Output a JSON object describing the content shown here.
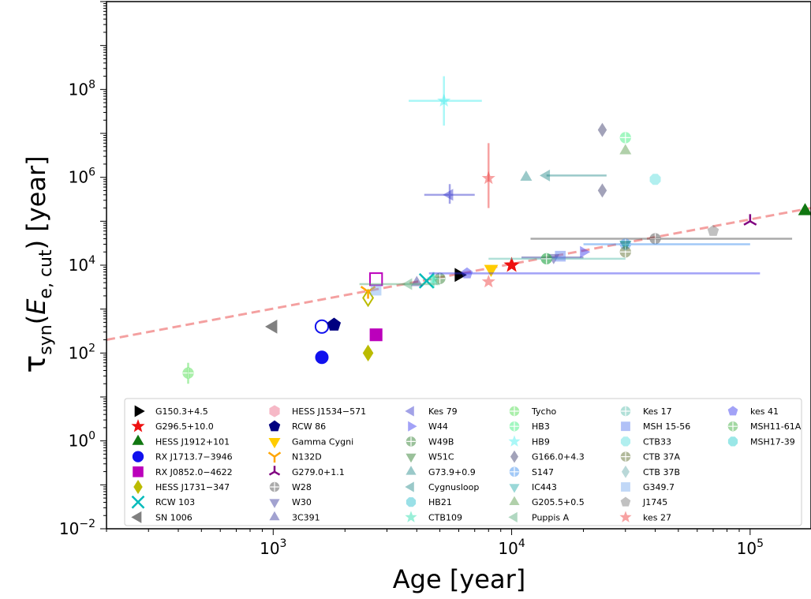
{
  "chart_data": {
    "type": "scatter",
    "title": "",
    "xlabel": "Age [year]",
    "ylabel": "τsyn(Ee,cut) [year]",
    "ylabel_parts": {
      "tau": "τ",
      "sub": "syn",
      "open": "(",
      "E": "E",
      "esub": "e, cut",
      "close": ")",
      "unit": " [year]"
    },
    "xscale": "log",
    "yscale": "log",
    "xlim": [
      200,
      180000
    ],
    "ylim": [
      0.01,
      10000000000
    ],
    "x_ticks": [
      {
        "value": 1000,
        "base": "10",
        "exp": "3"
      },
      {
        "value": 10000,
        "base": "10",
        "exp": "4"
      },
      {
        "value": 100000,
        "base": "10",
        "exp": "5"
      }
    ],
    "y_ticks": [
      {
        "value": 0.01,
        "base": "10",
        "exp": "−2"
      },
      {
        "value": 1,
        "base": "10",
        "exp": "0"
      },
      {
        "value": 100,
        "base": "10",
        "exp": "2"
      },
      {
        "value": 10000,
        "base": "10",
        "exp": "4"
      },
      {
        "value": 1000000,
        "base": "10",
        "exp": "6"
      },
      {
        "value": 100000000,
        "base": "10",
        "exp": "8"
      }
    ],
    "grid": false,
    "legend_position": "lower-left",
    "fit_line": {
      "style": "dashed",
      "color": "#f4a0a0",
      "points": [
        [
          200,
          200
        ],
        [
          180000,
          200000
        ]
      ]
    },
    "series": [
      {
        "name": "G150.3+4.5",
        "marker": "tri-right",
        "color": "#000000",
        "fill": true,
        "alpha": 1,
        "points": [
          {
            "x": 6000,
            "y": 6000
          }
        ]
      },
      {
        "name": "G296.5+10.0",
        "marker": "star",
        "color": "#ee1111",
        "fill": true,
        "alpha": 1,
        "points": [
          {
            "x": 10000,
            "y": 10000
          }
        ]
      },
      {
        "name": "HESS J1912+101",
        "marker": "tri-up",
        "color": "#117711",
        "fill": true,
        "alpha": 1,
        "points": [
          {
            "x": 170000,
            "y": 170000
          }
        ]
      },
      {
        "name": "RX J1713.7−3946",
        "marker": "circle",
        "color": "#1111ee",
        "fill": true,
        "alpha": 1,
        "points": [
          {
            "x": 1600,
            "y": 80
          },
          {
            "x": 1600,
            "y": 400,
            "open": true
          }
        ]
      },
      {
        "name": "RX J0852.0−4622",
        "marker": "square",
        "color": "#bb00bb",
        "fill": true,
        "alpha": 1,
        "points": [
          {
            "x": 2700,
            "y": 260
          },
          {
            "x": 2700,
            "y": 4800,
            "open": true
          }
        ]
      },
      {
        "name": "HESS J1731−347",
        "marker": "diamond",
        "color": "#bbbb00",
        "fill": true,
        "alpha": 1,
        "points": [
          {
            "x": 2500,
            "y": 100
          },
          {
            "x": 2500,
            "y": 1800,
            "open": true
          }
        ]
      },
      {
        "name": "RCW 103",
        "marker": "x",
        "color": "#00bbbb",
        "fill": false,
        "alpha": 1,
        "points": [
          {
            "x": 4400,
            "y": 4400
          }
        ]
      },
      {
        "name": "SN 1006",
        "marker": "tri-left",
        "color": "#808080",
        "fill": true,
        "alpha": 1,
        "points": [
          {
            "x": 1000,
            "y": 400
          }
        ]
      },
      {
        "name": "HESS J1534−571",
        "marker": "hexagon",
        "color": "#f6b8c6",
        "fill": true,
        "alpha": 1,
        "points": []
      },
      {
        "name": "RCW 86",
        "marker": "pentagon",
        "color": "#000080",
        "fill": true,
        "alpha": 1,
        "points": [
          {
            "x": 1800,
            "y": 440
          }
        ]
      },
      {
        "name": "Gamma Cygni",
        "marker": "tri-down",
        "color": "#ffcc00",
        "fill": true,
        "alpha": 1,
        "points": [
          {
            "x": 8200,
            "y": 8200
          }
        ]
      },
      {
        "name": "N132D",
        "marker": "tri-down-thin",
        "color": "#ffa500",
        "fill": false,
        "alpha": 1,
        "points": [
          {
            "x": 2500,
            "y": 2500
          }
        ]
      },
      {
        "name": "G279.0+1.1",
        "marker": "tri-y",
        "color": "#800080",
        "fill": false,
        "alpha": 1,
        "points": [
          {
            "x": 100000,
            "y": 100000
          }
        ]
      },
      {
        "name": "W28",
        "marker": "circle-plus",
        "color": "#444444",
        "fill": true,
        "alpha": 0.45,
        "points": [
          {
            "x": 40000,
            "y": 40000,
            "xerr": [
              12000,
              150000
            ]
          }
        ]
      },
      {
        "name": "W30",
        "marker": "tri-down",
        "color": "#333399",
        "fill": true,
        "alpha": 0.45,
        "points": [
          {
            "x": 15000,
            "y": 15000,
            "xerr": [
              11000,
              20000
            ]
          }
        ]
      },
      {
        "name": "3C391",
        "marker": "tri-up",
        "color": "#333399",
        "fill": true,
        "alpha": 0.45,
        "points": [
          {
            "x": 4000,
            "y": 4000
          }
        ]
      },
      {
        "name": "Kes 79",
        "marker": "tri-left",
        "color": "#3333cc",
        "fill": true,
        "alpha": 0.45,
        "points": [
          {
            "x": 5500,
            "y": 400000,
            "xerr": [
              4300,
              7000
            ],
            "yerr": [
              250000,
              700000
            ]
          }
        ]
      },
      {
        "name": "W44",
        "marker": "tri-right",
        "color": "#3333ee",
        "fill": true,
        "alpha": 0.45,
        "points": [
          {
            "x": 20000,
            "y": 20000
          }
        ]
      },
      {
        "name": "W49B",
        "marker": "circle-plus",
        "color": "#227722",
        "fill": true,
        "alpha": 0.45,
        "points": [
          {
            "x": 5000,
            "y": 5000
          }
        ]
      },
      {
        "name": "W51C",
        "marker": "tri-down",
        "color": "#227722",
        "fill": true,
        "alpha": 0.45,
        "points": [
          {
            "x": 30000,
            "y": 30000
          }
        ]
      },
      {
        "name": "G73.9+0.9",
        "marker": "tri-up",
        "color": "#228888",
        "fill": true,
        "alpha": 0.45,
        "points": [
          {
            "x": 11500,
            "y": 1000000
          }
        ]
      },
      {
        "name": "Cygnusloop",
        "marker": "tri-left",
        "color": "#228888",
        "fill": true,
        "alpha": 0.45,
        "points": [
          {
            "x": 14000,
            "y": 1100000,
            "xerr": [
              14000,
              25000
            ]
          }
        ]
      },
      {
        "name": "HB21",
        "marker": "octagon",
        "color": "#22bbcc",
        "fill": true,
        "alpha": 0.45,
        "points": []
      },
      {
        "name": "CTB109",
        "marker": "star",
        "color": "#22ddaa",
        "fill": true,
        "alpha": 0.45,
        "points": [
          {
            "x": 4700,
            "y": 4700,
            "yerr": [
              3000,
              7000
            ]
          }
        ]
      },
      {
        "name": "Tycho",
        "marker": "circle-plus",
        "color": "#44dd44",
        "fill": true,
        "alpha": 0.45,
        "points": [
          {
            "x": 440,
            "y": 35,
            "yerr": [
              20,
              60
            ]
          }
        ]
      },
      {
        "name": "HB3",
        "marker": "circle-plus",
        "color": "#33ee77",
        "fill": true,
        "alpha": 0.45,
        "points": [
          {
            "x": 30000,
            "y": 8000000
          }
        ]
      },
      {
        "name": "HB9",
        "marker": "star",
        "color": "#44eeee",
        "fill": true,
        "alpha": 0.45,
        "points": [
          {
            "x": 5200,
            "y": 55000000,
            "xerr": [
              3700,
              7500
            ],
            "yerr": [
              15000000,
              200000000
            ]
          }
        ]
      },
      {
        "name": "G166.0+4.3",
        "marker": "diamond",
        "color": "#333366",
        "fill": true,
        "alpha": 0.45,
        "points": [
          {
            "x": 24000,
            "y": 12000000
          },
          {
            "x": 24000,
            "y": 500000
          }
        ]
      },
      {
        "name": "S147",
        "marker": "circle-plus",
        "color": "#3388ee",
        "fill": true,
        "alpha": 0.45,
        "points": [
          {
            "x": 30000,
            "y": 30000,
            "xerr": [
              20000,
              100000
            ]
          }
        ]
      },
      {
        "name": "IC443",
        "marker": "tri-down",
        "color": "#22aaaa",
        "fill": true,
        "alpha": 0.45,
        "points": [
          {
            "x": 30000,
            "y": 30000
          }
        ]
      },
      {
        "name": "G205.5+0.5",
        "marker": "tri-up",
        "color": "#559944",
        "fill": true,
        "alpha": 0.45,
        "points": [
          {
            "x": 30000,
            "y": 4000000
          }
        ]
      },
      {
        "name": "Puppis A",
        "marker": "tri-left",
        "color": "#55aa77",
        "fill": true,
        "alpha": 0.45,
        "points": [
          {
            "x": 3700,
            "y": 3700,
            "xerr": [
              2300,
              5000
            ]
          }
        ]
      },
      {
        "name": "Kes 17",
        "marker": "circle-plus",
        "color": "#55bbaa",
        "fill": true,
        "alpha": 0.45,
        "points": [
          {
            "x": 14000,
            "y": 14000,
            "xerr": [
              8000,
              30000
            ]
          }
        ]
      },
      {
        "name": "MSH 15-56",
        "marker": "square",
        "color": "#5577ee",
        "fill": true,
        "alpha": 0.45,
        "points": [
          {
            "x": 16000,
            "y": 16000
          }
        ]
      },
      {
        "name": "CTB33",
        "marker": "octagon",
        "color": "#55dddd",
        "fill": true,
        "alpha": 0.45,
        "points": [
          {
            "x": 40000,
            "y": 900000
          }
        ]
      },
      {
        "name": "CTB 37A",
        "marker": "circle-plus",
        "color": "#556622",
        "fill": true,
        "alpha": 0.45,
        "points": [
          {
            "x": 30000,
            "y": 20000
          }
        ]
      },
      {
        "name": "CTB 37B",
        "marker": "diamond",
        "color": "#66aaaa",
        "fill": true,
        "alpha": 0.45,
        "points": []
      },
      {
        "name": "G349.7",
        "marker": "square",
        "color": "#77aaee",
        "fill": true,
        "alpha": 0.45,
        "points": [
          {
            "x": 2700,
            "y": 2700
          }
        ]
      },
      {
        "name": "J1745",
        "marker": "pentagon",
        "color": "#777777",
        "fill": true,
        "alpha": 0.45,
        "points": [
          {
            "x": 70000,
            "y": 60000
          }
        ]
      },
      {
        "name": "kes 27",
        "marker": "star",
        "color": "#ee3333",
        "fill": true,
        "alpha": 0.45,
        "points": [
          {
            "x": 8000,
            "y": 950000,
            "yerr": [
              200000,
              6000000
            ]
          },
          {
            "x": 8000,
            "y": 4200
          }
        ]
      },
      {
        "name": "kes 41",
        "marker": "pentagon",
        "color": "#3333ee",
        "fill": true,
        "alpha": 0.45,
        "points": [
          {
            "x": 6500,
            "y": 6500,
            "xerr": [
              4500,
              110000
            ]
          }
        ]
      },
      {
        "name": "MSH11-61A",
        "marker": "circle-plus",
        "color": "#33aa33",
        "fill": true,
        "alpha": 0.45,
        "points": [
          {
            "x": 14000,
            "y": 14000
          }
        ]
      },
      {
        "name": "MSH17-39",
        "marker": "octagon",
        "color": "#22cccc",
        "fill": true,
        "alpha": 0.45,
        "points": []
      }
    ]
  }
}
